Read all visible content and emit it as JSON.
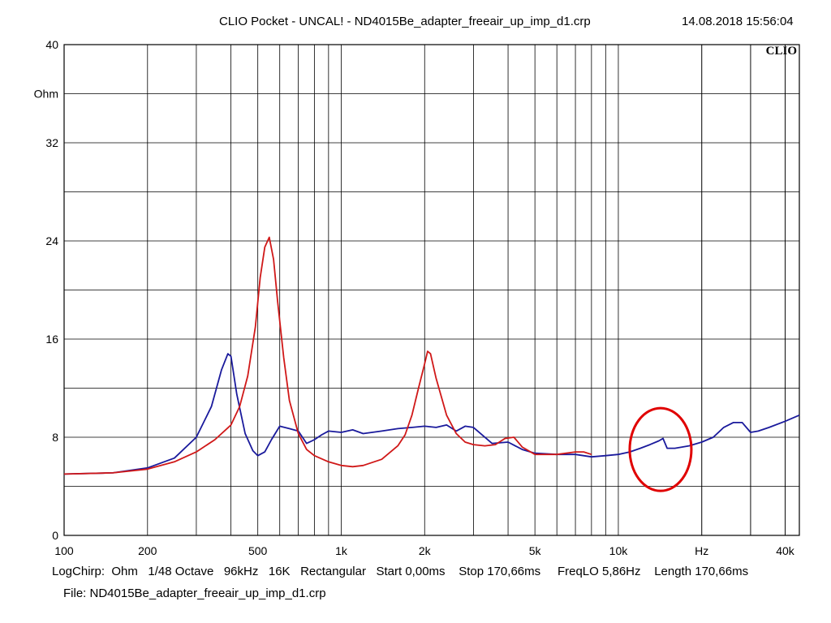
{
  "header": {
    "title": "CLIO Pocket - UNCAL! - ND4015Be_adapter_freeair_up_imp_d1.crp",
    "timestamp": "14.08.2018 15:56:04",
    "logo": "CLIO"
  },
  "footer": {
    "settings": {
      "mode": "LogChirp:",
      "unit": "Ohm",
      "resolution": "1/48 Octave",
      "sample_rate": "96kHz",
      "size": "16K",
      "window": "Rectangular",
      "start": "Start 0,00ms",
      "stop": "Stop 170,66ms",
      "freqlo": "FreqLO 5,86Hz",
      "length": "Length 170,66ms"
    },
    "file": "File: ND4015Be_adapter_freeair_up_imp_d1.crp"
  },
  "colors": {
    "grid": "#000000",
    "series_blue": "#1a1a9c",
    "series_red": "#d01818",
    "annotation": "#e00000"
  },
  "chart_data": {
    "type": "line",
    "x_scale": "log",
    "xlim": [
      100,
      45000
    ],
    "ylim": [
      0,
      40
    ],
    "grid": true,
    "ylabel": "Ohm",
    "xlabel_unit": "Hz",
    "y_ticks": [
      "0",
      "8",
      "16",
      "24",
      "32",
      "40"
    ],
    "x_tick_labels": [
      {
        "f": 100,
        "label": "100"
      },
      {
        "f": 200,
        "label": "200"
      },
      {
        "f": 500,
        "label": "500"
      },
      {
        "f": 1000,
        "label": "1k"
      },
      {
        "f": 2000,
        "label": "2k"
      },
      {
        "f": 5000,
        "label": "5k"
      },
      {
        "f": 10000,
        "label": "10k"
      },
      {
        "f": 40000,
        "label": "40k"
      }
    ],
    "series": [
      {
        "color": "series_blue",
        "x": [
          100,
          150,
          200,
          250,
          300,
          340,
          370,
          390,
          400,
          420,
          450,
          480,
          500,
          530,
          560,
          600,
          650,
          700,
          750,
          800,
          850,
          900,
          1000,
          1100,
          1200,
          1400,
          1600,
          1800,
          2000,
          2200,
          2400,
          2600,
          2800,
          3000,
          3500,
          4000,
          4500,
          5000,
          6000,
          7000,
          8000,
          9000,
          10000,
          11000,
          12000,
          13000,
          14000,
          14500,
          15000,
          16000,
          18000,
          20000,
          22000,
          24000,
          26000,
          28000,
          30000,
          32000,
          35000,
          40000,
          45000
        ],
        "y": [
          5.0,
          5.1,
          5.5,
          6.3,
          8.0,
          10.5,
          13.5,
          14.8,
          14.6,
          11.5,
          8.3,
          6.9,
          6.5,
          6.8,
          7.8,
          8.9,
          8.7,
          8.5,
          7.5,
          7.8,
          8.2,
          8.5,
          8.4,
          8.6,
          8.3,
          8.5,
          8.7,
          8.8,
          8.9,
          8.8,
          9.0,
          8.5,
          8.9,
          8.8,
          7.5,
          7.6,
          7.0,
          6.7,
          6.6,
          6.6,
          6.4,
          6.5,
          6.6,
          6.8,
          7.1,
          7.4,
          7.7,
          7.9,
          7.1,
          7.1,
          7.3,
          7.6,
          8.0,
          8.8,
          9.2,
          9.2,
          8.4,
          8.5,
          8.8,
          9.3,
          9.8
        ]
      },
      {
        "color": "series_red",
        "x": [
          100,
          150,
          200,
          250,
          300,
          350,
          400,
          430,
          460,
          490,
          510,
          530,
          550,
          570,
          590,
          620,
          650,
          700,
          750,
          800,
          900,
          1000,
          1100,
          1200,
          1400,
          1600,
          1700,
          1800,
          1900,
          2000,
          2050,
          2100,
          2200,
          2400,
          2600,
          2800,
          3000,
          3300,
          3600,
          3900,
          4200,
          4500,
          5000,
          6000,
          7000,
          7500,
          8000
        ],
        "y": [
          5.0,
          5.1,
          5.4,
          6.0,
          6.8,
          7.8,
          9.0,
          10.5,
          13.0,
          17.0,
          21.0,
          23.5,
          24.3,
          22.5,
          19.0,
          14.5,
          11.0,
          8.3,
          7.0,
          6.5,
          6.0,
          5.7,
          5.6,
          5.7,
          6.2,
          7.3,
          8.2,
          9.8,
          12.0,
          14.0,
          15.0,
          14.8,
          12.8,
          9.8,
          8.3,
          7.6,
          7.4,
          7.3,
          7.4,
          7.9,
          8.0,
          7.2,
          6.6,
          6.6,
          6.8,
          6.8,
          6.6
        ]
      }
    ],
    "annotation": {
      "shape": "ellipse",
      "color": "annotation",
      "f_center": 14200,
      "y_center": 7.0
    }
  }
}
